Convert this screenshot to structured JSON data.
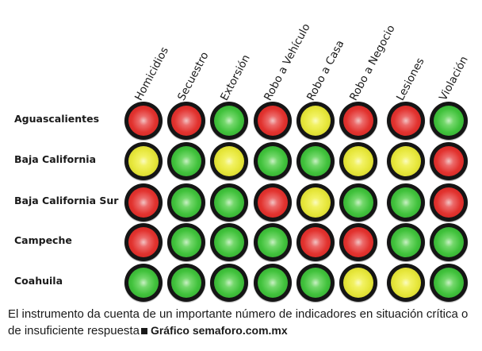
{
  "columns": [
    "Homicidios",
    "Secuestro",
    "Extorsión",
    "Robo a Vehículo",
    "Robo a Casa",
    "Robo a Negocio",
    "Lesiones",
    "Violación"
  ],
  "rows": [
    {
      "label": "Aguascalientes",
      "lights": [
        "red",
        "red",
        "green",
        "red",
        "yellow",
        "red",
        "red",
        "green"
      ]
    },
    {
      "label": "Baja California",
      "lights": [
        "yellow",
        "green",
        "yellow",
        "green",
        "green",
        "yellow",
        "yellow",
        "red"
      ]
    },
    {
      "label": "Baja California Sur",
      "lights": [
        "red",
        "green",
        "green",
        "red",
        "yellow",
        "green",
        "green",
        "red"
      ]
    },
    {
      "label": "Campeche",
      "lights": [
        "red",
        "green",
        "green",
        "green",
        "red",
        "red",
        "green",
        "green"
      ]
    },
    {
      "label": "Coahuila",
      "lights": [
        "green",
        "green",
        "green",
        "green",
        "green",
        "yellow",
        "yellow",
        "green"
      ]
    }
  ],
  "colors": {
    "red": "#e2332f",
    "yellow": "#e6e63a",
    "green": "#41c23c",
    "bezel": "#151515"
  },
  "caption": {
    "text": "El instrumento da cuenta de un importante número de indicadores en situación crítica o de insuficiente respuesta",
    "credit": "Gráfico semaforo.com.mx"
  }
}
